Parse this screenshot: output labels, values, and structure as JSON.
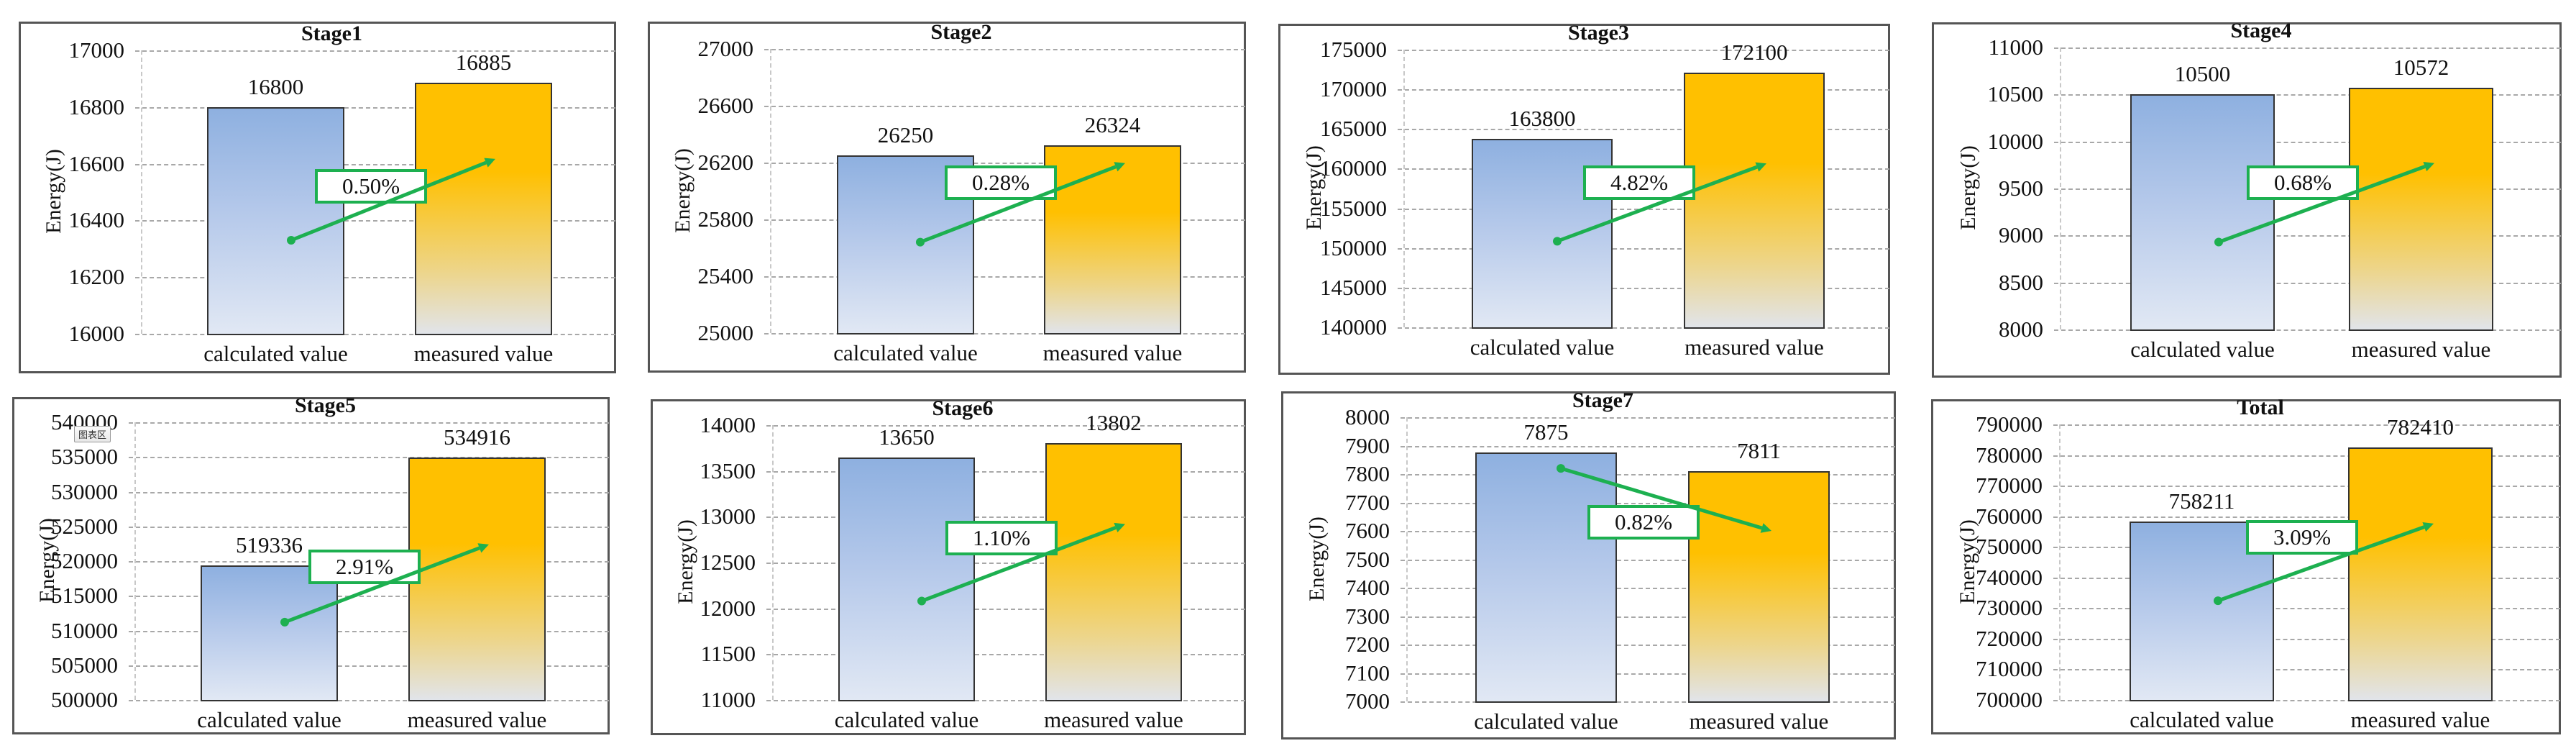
{
  "chart_data": [
    {
      "type": "bar",
      "title": "Stage1",
      "categories": [
        "calculated value",
        "measured value"
      ],
      "values": [
        16800,
        16885
      ],
      "xlabel": "",
      "ylabel": "Energy(J)",
      "ylim": [
        16000,
        17000
      ],
      "yticks": [
        16000,
        16200,
        16400,
        16600,
        16800,
        17000
      ],
      "annotation": "0.50%",
      "arrow": {
        "from_frac": 0.33,
        "to_frac": 0.617,
        "label_frac": 0.52
      },
      "grid": true,
      "legend": false
    },
    {
      "type": "bar",
      "title": "Stage2",
      "categories": [
        "calculated value",
        "measured value"
      ],
      "values": [
        26250,
        26324
      ],
      "xlabel": "",
      "ylabel": "Energy(J)",
      "ylim": [
        25000,
        27000
      ],
      "yticks": [
        25000,
        25400,
        25800,
        26200,
        26600,
        27000
      ],
      "annotation": "0.28%",
      "arrow": {
        "from_frac": 0.32,
        "to_frac": 0.598,
        "label_frac": 0.53
      },
      "grid": true,
      "legend": false
    },
    {
      "type": "bar",
      "title": "Stage3",
      "categories": [
        "calculated value",
        "measured value"
      ],
      "values": [
        163800,
        172100
      ],
      "xlabel": "",
      "ylabel": "Energy(J)",
      "ylim": [
        140000,
        175000
      ],
      "yticks": [
        140000,
        145000,
        150000,
        155000,
        160000,
        165000,
        170000,
        175000
      ],
      "annotation": "4.82%",
      "arrow": {
        "from_frac": 0.31,
        "to_frac": 0.59,
        "label_frac": 0.52
      },
      "grid": true,
      "legend": false
    },
    {
      "type": "bar",
      "title": "Stage4",
      "categories": [
        "calculated value",
        "measured value"
      ],
      "values": [
        10500,
        10572
      ],
      "xlabel": "",
      "ylabel": "Energy(J)",
      "ylim": [
        8000,
        11000
      ],
      "yticks": [
        8000,
        8500,
        9000,
        9500,
        10000,
        10500,
        11000
      ],
      "annotation": "0.68%",
      "arrow": {
        "from_frac": 0.31,
        "to_frac": 0.59,
        "label_frac": 0.52
      },
      "grid": true,
      "legend": false
    },
    {
      "type": "bar",
      "title": "Stage5",
      "categories": [
        "calculated value",
        "measured value"
      ],
      "values": [
        519336,
        534916
      ],
      "xlabel": "",
      "ylabel": "Energy(J)",
      "ylim": [
        500000,
        540000
      ],
      "yticks": [
        500000,
        505000,
        510000,
        515000,
        520000,
        525000,
        530000,
        535000,
        540000
      ],
      "annotation": "2.91%",
      "arrow": {
        "from_frac": 0.28,
        "to_frac": 0.56,
        "label_frac": 0.48
      },
      "tooltip": "图表区",
      "grid": true,
      "legend": false
    },
    {
      "type": "bar",
      "title": "Stage6",
      "categories": [
        "calculated value",
        "measured value"
      ],
      "values": [
        13650,
        13802
      ],
      "xlabel": "",
      "ylabel": "Energy(J)",
      "ylim": [
        11000,
        14000
      ],
      "yticks": [
        11000,
        11500,
        12000,
        12500,
        13000,
        13500,
        14000
      ],
      "annotation": "1.10%",
      "arrow": {
        "from_frac": 0.36,
        "to_frac": 0.64,
        "label_frac": 0.59
      },
      "grid": true,
      "legend": false
    },
    {
      "type": "bar",
      "title": "Stage7",
      "categories": [
        "calculated value",
        "measured value"
      ],
      "values": [
        7875,
        7811
      ],
      "xlabel": "",
      "ylabel": "Energy(J)",
      "ylim": [
        7000,
        8000
      ],
      "yticks": [
        7000,
        7100,
        7200,
        7300,
        7400,
        7500,
        7600,
        7700,
        7800,
        7900,
        8000
      ],
      "annotation": "0.82%",
      "arrow": {
        "from_frac": 0.82,
        "to_frac": 0.6,
        "label_frac": 0.63
      },
      "grid": true,
      "legend": false
    },
    {
      "type": "bar",
      "title": "Total",
      "categories": [
        "calculated value",
        "measured value"
      ],
      "values": [
        758211,
        782410
      ],
      "xlabel": "",
      "ylabel": "Energy(J)",
      "ylim": [
        700000,
        790000
      ],
      "yticks": [
        700000,
        710000,
        720000,
        730000,
        740000,
        750000,
        760000,
        770000,
        780000,
        790000
      ],
      "annotation": "3.09%",
      "arrow": {
        "from_frac": 0.36,
        "to_frac": 0.64,
        "label_frac": 0.59
      },
      "grid": true,
      "legend": false
    }
  ],
  "colors": {
    "calculated_top": "#8EB0E0",
    "calculated_bottom": "#E1E8F4",
    "measured_top": "#FFC000",
    "measured_bottom": "#E1E4EA",
    "arrow": "#1DB050",
    "label_border": "#1DB050",
    "frame": "#555555",
    "grid": "#A8A8A8"
  }
}
